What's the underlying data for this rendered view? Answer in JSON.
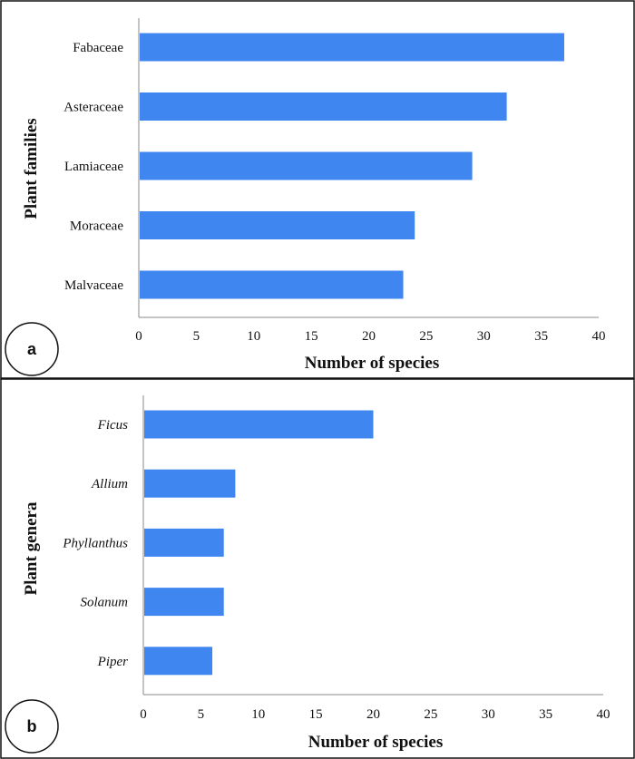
{
  "chart_data": [
    {
      "panel": "a",
      "type": "bar",
      "orientation": "horizontal",
      "categories": [
        "Fabaceae",
        "Asteraceae",
        "Lamiaceae",
        "Moraceae",
        "Malvaceae"
      ],
      "values": [
        37,
        32,
        29,
        24,
        23
      ],
      "xlabel": "Number of species",
      "ylabel": "Plant families",
      "xlim": [
        0,
        40
      ],
      "xticks": [
        0,
        5,
        10,
        15,
        20,
        25,
        30,
        35,
        40
      ],
      "italic_categories": false,
      "bar_color": "#3f86f0"
    },
    {
      "panel": "b",
      "type": "bar",
      "orientation": "horizontal",
      "categories": [
        "Ficus",
        "Allium",
        "Phyllanthus",
        "Solanum",
        "Piper"
      ],
      "values": [
        20,
        8,
        7,
        7,
        6
      ],
      "xlabel": "Number of species",
      "ylabel": "Plant genera",
      "xlim": [
        0,
        40
      ],
      "xticks": [
        0,
        5,
        10,
        15,
        20,
        25,
        30,
        35,
        40
      ],
      "italic_categories": true,
      "bar_color": "#3f86f0"
    }
  ]
}
